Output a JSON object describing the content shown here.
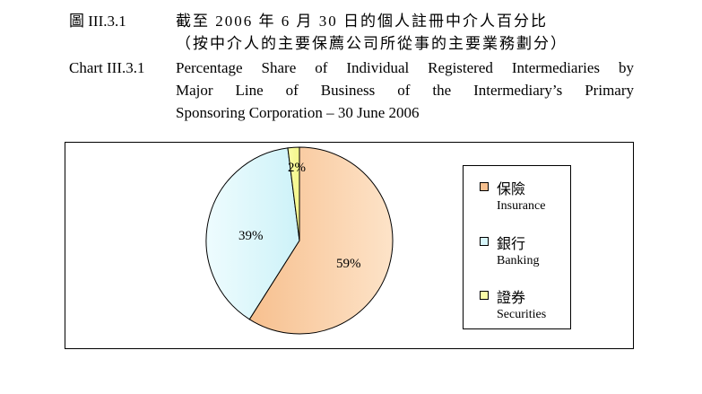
{
  "header": {
    "label_cn": "圖 III.3.1",
    "title_cn_line1": "截至 2006 年 6 月 30 日的個人註冊中介人百分比",
    "title_cn_line2": "（按中介人的主要保薦公司所從事的主要業務劃分）",
    "label_en": "Chart III.3.1",
    "title_en_line1": "Percentage Share of Individual Registered Intermediaries by",
    "title_en_line2": "Major Line of Business of the Intermediary’s Primary",
    "title_en_line3": "Sponsoring Corporation – 30 June 2006"
  },
  "chart_data": {
    "type": "pie",
    "legend_position": "right",
    "slices": [
      {
        "label_cn": "保險",
        "label_en": "Insurance",
        "value": 59,
        "display": "59%",
        "color": "#f7c08f"
      },
      {
        "label_cn": "銀行",
        "label_en": "Banking",
        "value": 39,
        "display": "39%",
        "color": "#d7f6fb"
      },
      {
        "label_cn": "證券",
        "label_en": "Securities",
        "value": 2,
        "display": "2%",
        "color": "#fafca8"
      }
    ]
  }
}
